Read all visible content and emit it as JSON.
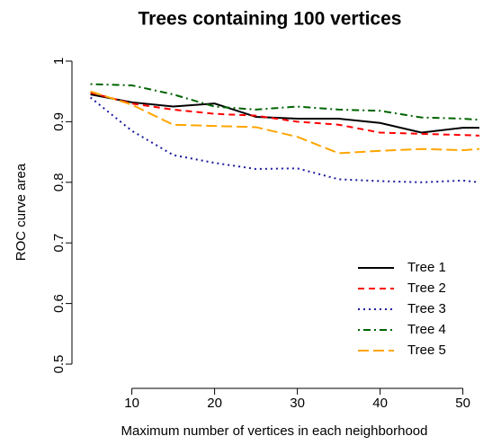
{
  "chart_data": {
    "type": "line",
    "title": "Trees containing 100 vertices",
    "xlabel": "Maximum number of vertices in each neighborhood",
    "ylabel": "ROC curve area",
    "x": [
      5,
      10,
      15,
      20,
      25,
      30,
      35,
      40,
      45,
      50,
      52
    ],
    "series": [
      {
        "name": "Tree 1",
        "color": "#000000",
        "linestyle": "solid",
        "values": [
          0.945,
          0.932,
          0.925,
          0.93,
          0.908,
          0.905,
          0.905,
          0.898,
          0.882,
          0.89,
          0.89
        ]
      },
      {
        "name": "Tree 2",
        "color": "#ff0000",
        "linestyle": "dashed",
        "values": [
          0.948,
          0.93,
          0.92,
          0.913,
          0.91,
          0.9,
          0.895,
          0.882,
          0.88,
          0.878,
          0.877
        ]
      },
      {
        "name": "Tree 3",
        "color": "#1a1aa0",
        "linestyle": "dotted",
        "values": [
          0.94,
          0.885,
          0.845,
          0.832,
          0.822,
          0.823,
          0.805,
          0.802,
          0.8,
          0.803,
          0.8
        ]
      },
      {
        "name": "Tree 4",
        "color": "#006400",
        "linestyle": "dashdot",
        "values": [
          0.962,
          0.96,
          0.945,
          0.925,
          0.92,
          0.925,
          0.92,
          0.918,
          0.907,
          0.905,
          0.903
        ]
      },
      {
        "name": "Tree 5",
        "color": "#ffa500",
        "linestyle": "longdash",
        "values": [
          0.95,
          0.928,
          0.895,
          0.893,
          0.891,
          0.875,
          0.848,
          0.852,
          0.855,
          0.853,
          0.855
        ]
      }
    ],
    "xlim": [
      4.5,
      52
    ],
    "ylim": [
      0.48,
      1.02
    ],
    "xticks": [
      10,
      20,
      30,
      40,
      50
    ],
    "yticks": [
      0.5,
      0.6,
      0.7,
      0.8,
      0.9,
      1.0
    ],
    "legend": "lower right"
  }
}
